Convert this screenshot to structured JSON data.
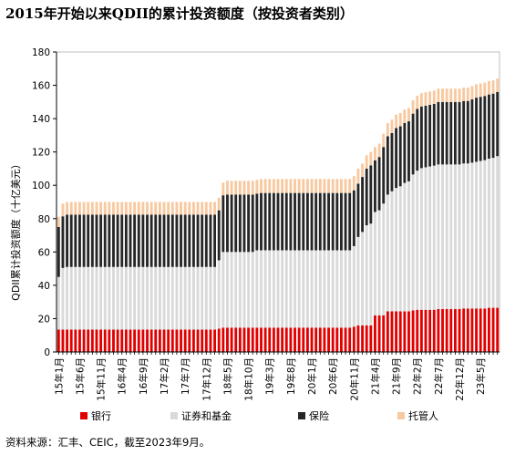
{
  "title": "2015年开始以来QDII的累计投资额度（按投资者类别）",
  "source": "资料来源：汇丰、CEIC，截至2023年9月。",
  "colors": {
    "bank": "#e00000",
    "securities_funds": "#d9d9d9",
    "insurance": "#262626",
    "trustee": "#f8c9a0"
  },
  "chart_data": {
    "type": "bar",
    "stacked": true,
    "title": "",
    "xlabel": "",
    "ylabel": "QDII累计投资额度（十亿美元）",
    "ylim": [
      0,
      180
    ],
    "yticks": [
      0,
      20,
      40,
      60,
      80,
      100,
      120,
      140,
      160,
      180
    ],
    "grid": false,
    "legend_position": "bottom",
    "x_tick_labels": [
      "15年1月",
      "15年6月",
      "15年11月",
      "16年4月",
      "16年9月",
      "17年2月",
      "17年7月",
      "17年12月",
      "18年5月",
      "18年10月",
      "19年3月",
      "19年8月",
      "20年1月",
      "20年6月",
      "20年11月",
      "21年4月",
      "21年9月",
      "22年2月",
      "22年7月",
      "22年12月",
      "23年5月"
    ],
    "x_tick_every": 5,
    "categories": [
      "15年1月",
      "15年2月",
      "15年3月",
      "15年4月",
      "15年5月",
      "15年6月",
      "15年7月",
      "15年8月",
      "15年9月",
      "15年10月",
      "15年11月",
      "15年12月",
      "16年1月",
      "16年2月",
      "16年3月",
      "16年4月",
      "16年5月",
      "16年6月",
      "16年7月",
      "16年8月",
      "16年9月",
      "16年10月",
      "16年11月",
      "16年12月",
      "17年1月",
      "17年2月",
      "17年3月",
      "17年4月",
      "17年5月",
      "17年6月",
      "17年7月",
      "17年8月",
      "17年9月",
      "17年10月",
      "17年11月",
      "17年12月",
      "18年1月",
      "18年2月",
      "18年3月",
      "18年4月",
      "18年5月",
      "18年6月",
      "18年7月",
      "18年8月",
      "18年9月",
      "18年10月",
      "18年11月",
      "18年12月",
      "19年1月",
      "19年2月",
      "19年3月",
      "19年4月",
      "19年5月",
      "19年6月",
      "19年7月",
      "19年8月",
      "19年9月",
      "19年10月",
      "19年11月",
      "19年12月",
      "20年1月",
      "20年2月",
      "20年3月",
      "20年4月",
      "20年5月",
      "20年6月",
      "20年7月",
      "20年8月",
      "20年9月",
      "20年10月",
      "20年11月",
      "20年12月",
      "21年1月",
      "21年2月",
      "21年3月",
      "21年4月",
      "21年5月",
      "21年6月",
      "21年7月",
      "21年8月",
      "21年9月",
      "21年10月",
      "21年11月",
      "21年12月",
      "22年1月",
      "22年2月",
      "22年3月",
      "22年4月",
      "22年5月",
      "22年6月",
      "22年7月",
      "22年8月",
      "22年9月",
      "22年10月",
      "22年11月",
      "22年12月",
      "23年1月",
      "23年2月",
      "23年3月",
      "23年4月",
      "23年5月",
      "23年6月",
      "23年7月",
      "23年8月",
      "23年9月"
    ],
    "series": [
      {
        "name": "银行",
        "color": "#e00000",
        "values": [
          13.4,
          13.4,
          13.4,
          13.4,
          13.4,
          13.4,
          13.4,
          13.4,
          13.4,
          13.4,
          13.4,
          13.4,
          13.4,
          13.4,
          13.4,
          13.4,
          13.4,
          13.4,
          13.4,
          13.4,
          13.4,
          13.4,
          13.4,
          13.4,
          13.4,
          13.4,
          13.4,
          13.4,
          13.4,
          13.4,
          13.4,
          13.4,
          13.4,
          13.4,
          13.4,
          13.4,
          13.4,
          13.4,
          14.0,
          14.6,
          14.6,
          14.6,
          14.6,
          14.6,
          14.6,
          14.6,
          14.6,
          14.6,
          14.6,
          14.6,
          14.6,
          14.6,
          14.6,
          14.6,
          14.6,
          14.6,
          14.6,
          14.6,
          14.6,
          14.6,
          14.6,
          14.6,
          14.6,
          14.6,
          14.6,
          14.6,
          14.6,
          14.6,
          14.6,
          14.6,
          15.2,
          16.0,
          16.0,
          16.0,
          16.0,
          22.0,
          22.0,
          22.0,
          24.4,
          24.4,
          24.4,
          24.4,
          24.4,
          24.4,
          25.0,
          25.3,
          25.3,
          25.3,
          25.3,
          25.3,
          25.8,
          25.8,
          25.8,
          25.8,
          25.8,
          25.8,
          26.1,
          26.1,
          26.1,
          26.1,
          26.1,
          26.1,
          26.5,
          26.5,
          26.5
        ]
      },
      {
        "name": "证券和基金",
        "color": "#d9d9d9",
        "values": [
          31.6,
          37.0,
          37.6,
          37.6,
          37.6,
          37.6,
          37.6,
          37.6,
          37.6,
          37.6,
          37.6,
          37.6,
          37.6,
          37.6,
          37.6,
          37.6,
          37.6,
          37.6,
          37.6,
          37.6,
          37.6,
          37.6,
          37.6,
          37.6,
          37.6,
          37.6,
          37.6,
          37.6,
          37.6,
          37.6,
          37.6,
          37.6,
          37.6,
          37.6,
          37.6,
          37.6,
          37.6,
          37.6,
          41.0,
          45.4,
          45.4,
          45.4,
          45.4,
          45.4,
          45.4,
          45.4,
          45.4,
          46.4,
          46.4,
          46.4,
          46.4,
          46.4,
          46.4,
          46.4,
          46.4,
          46.4,
          46.4,
          46.4,
          46.4,
          46.4,
          46.4,
          46.4,
          46.4,
          46.4,
          46.4,
          46.4,
          46.4,
          46.4,
          46.4,
          46.4,
          48.3,
          53.0,
          56.0,
          60.0,
          61.0,
          62.0,
          63.0,
          67.0,
          70.0,
          72.0,
          74.0,
          75.0,
          77.0,
          78.0,
          81.5,
          83.5,
          85.0,
          85.5,
          86.0,
          86.5,
          86.7,
          86.7,
          86.7,
          86.7,
          86.7,
          86.7,
          87.0,
          87.0,
          87.5,
          88.0,
          88.5,
          89.0,
          89.5,
          90.0,
          91.0
        ]
      },
      {
        "name": "保险",
        "color": "#262626",
        "values": [
          30.0,
          31.0,
          31.4,
          31.4,
          31.4,
          31.4,
          31.4,
          31.4,
          31.4,
          31.4,
          31.4,
          31.4,
          31.4,
          31.4,
          31.4,
          31.4,
          31.4,
          31.4,
          31.4,
          31.4,
          31.4,
          31.4,
          31.4,
          31.4,
          31.4,
          31.4,
          31.4,
          31.4,
          31.4,
          31.4,
          31.4,
          31.4,
          31.4,
          31.4,
          31.4,
          31.4,
          31.4,
          31.4,
          30.0,
          34.0,
          34.4,
          34.4,
          34.4,
          34.4,
          34.4,
          34.4,
          34.4,
          34.0,
          34.4,
          34.4,
          34.4,
          34.4,
          34.4,
          34.4,
          34.4,
          34.4,
          34.4,
          34.4,
          34.4,
          34.4,
          34.4,
          34.4,
          34.4,
          34.4,
          34.4,
          34.4,
          34.4,
          34.4,
          34.4,
          34.4,
          33.5,
          32.0,
          33.0,
          34.0,
          35.0,
          31.0,
          32.0,
          34.0,
          35.0,
          35.0,
          36.0,
          36.0,
          36.0,
          36.0,
          36.5,
          37.0,
          37.0,
          37.0,
          37.0,
          37.0,
          37.5,
          37.5,
          37.5,
          37.5,
          37.5,
          37.5,
          37.5,
          37.5,
          38.0,
          38.5,
          38.5,
          38.5,
          38.5,
          38.5,
          38.5
        ]
      },
      {
        "name": "托管人",
        "color": "#f8c9a0",
        "values": [
          6.0,
          7.6,
          7.6,
          7.6,
          7.6,
          7.6,
          7.6,
          7.6,
          7.6,
          7.6,
          7.6,
          7.6,
          7.6,
          7.6,
          7.6,
          7.6,
          7.6,
          7.6,
          7.6,
          7.6,
          7.6,
          7.6,
          7.6,
          7.6,
          7.6,
          7.6,
          7.6,
          7.6,
          7.6,
          7.6,
          7.6,
          7.6,
          7.6,
          7.6,
          7.6,
          7.6,
          7.6,
          7.6,
          7.6,
          7.6,
          8.3,
          8.3,
          8.3,
          8.3,
          8.3,
          8.3,
          8.3,
          8.3,
          8.4,
          8.4,
          8.4,
          8.4,
          8.4,
          8.4,
          8.4,
          8.4,
          8.4,
          8.4,
          8.4,
          8.4,
          8.4,
          8.4,
          8.4,
          8.4,
          8.4,
          8.4,
          8.4,
          8.4,
          8.4,
          8.4,
          8.5,
          9.0,
          8.0,
          8.0,
          8.0,
          8.0,
          8.0,
          8.0,
          8.0,
          8.0,
          8.0,
          8.0,
          8.0,
          8.0,
          8.0,
          8.0,
          8.0,
          8.0,
          8.0,
          8.0,
          8.0,
          8.0,
          8.0,
          8.0,
          8.0,
          8.0,
          8.0,
          8.0,
          8.0,
          8.0,
          8.0,
          8.0,
          8.0,
          8.0,
          8.0
        ]
      }
    ]
  }
}
